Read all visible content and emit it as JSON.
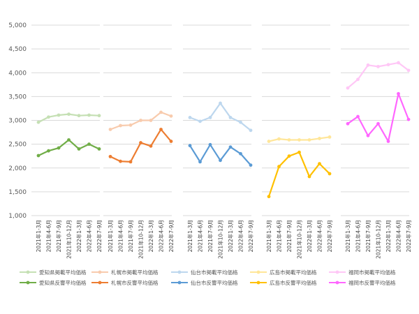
{
  "chart_data": {
    "type": "line",
    "ylim": [
      1000,
      5000
    ],
    "yticks": [
      1000,
      1500,
      2000,
      2500,
      3000,
      3500,
      4000,
      4500,
      5000
    ],
    "ytick_labels": [
      "1,000",
      "1,500",
      "2,000",
      "2,500",
      "3,000",
      "3,500",
      "4,000",
      "4,500",
      "5,000"
    ],
    "grid": "horizontal",
    "legend_position": "bottom",
    "categories": [
      "2021年1-3月",
      "2021年4-6月",
      "2021年7-9月",
      "2021年10-12月",
      "2022年1-3月",
      "2022年4-6月",
      "2022年7-9月"
    ],
    "panels": [
      {
        "series": [
          {
            "name": "愛知県掲載平均価格",
            "color": "#c5e0b4",
            "values": [
              2960,
              3070,
              3110,
              3130,
              3100,
              3110,
              3100
            ]
          },
          {
            "name": "愛知県反響平均価格",
            "color": "#70ad47",
            "values": [
              2260,
              2360,
              2420,
              2590,
              2400,
              2500,
              2400
            ]
          }
        ]
      },
      {
        "series": [
          {
            "name": "札幌市掲載平均価格",
            "color": "#f8cbad",
            "values": [
              2810,
              2890,
              2900,
              3000,
              3000,
              3170,
              3090
            ]
          },
          {
            "name": "札幌市反響平均価格",
            "color": "#ed7d31",
            "values": [
              2240,
              2140,
              2130,
              2530,
              2460,
              2810,
              2560
            ]
          }
        ]
      },
      {
        "series": [
          {
            "name": "仙台市掲載平均価格",
            "color": "#bdd7ee",
            "values": [
              3060,
              2980,
              3060,
              3360,
              3060,
              2960,
              2790
            ]
          },
          {
            "name": "仙台市反響平均価格",
            "color": "#5b9bd5",
            "values": [
              2470,
              2130,
              2490,
              2160,
              2440,
              2300,
              2060
            ]
          }
        ]
      },
      {
        "series": [
          {
            "name": "広島市掲載平均価格",
            "color": "#ffe699",
            "values": [
              2560,
              2610,
              2590,
              2590,
              2590,
              2620,
              2650
            ]
          },
          {
            "name": "広島市反響平均価格",
            "color": "#ffc000",
            "values": [
              1400,
              2030,
              2250,
              2330,
              1820,
              2090,
              1880
            ]
          }
        ]
      },
      {
        "series": [
          {
            "name": "福岡市掲載平均価格",
            "color": "#ffc7f6",
            "values": [
              3680,
              3860,
              4160,
              4130,
              4170,
              4210,
              4050
            ]
          },
          {
            "name": "福岡市反響平均価格",
            "color": "#ff66ff",
            "values": [
              2930,
              3080,
              2680,
              2930,
              2560,
              3560,
              3020
            ]
          }
        ]
      }
    ]
  }
}
